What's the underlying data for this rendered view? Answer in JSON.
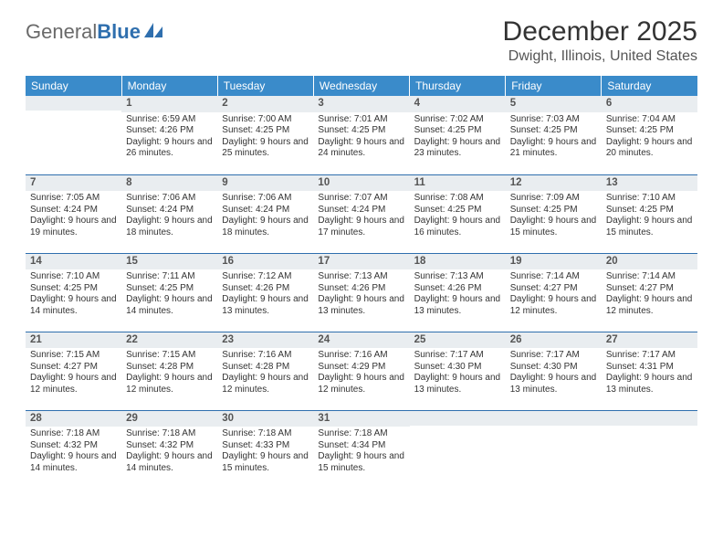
{
  "colors": {
    "header_bg": "#3a8bca",
    "header_text": "#ffffff",
    "daynum_bg": "#e9edf0",
    "daynum_text": "#555555",
    "row_border": "#2f6fae",
    "body_text": "#333333",
    "page_bg": "#ffffff",
    "logo_gray": "#6a6a6a",
    "logo_blue": "#2f6fae"
  },
  "logo": {
    "word1": "General",
    "word2": "Blue"
  },
  "title": "December 2025",
  "location": "Dwight, Illinois, United States",
  "weekdays": [
    "Sunday",
    "Monday",
    "Tuesday",
    "Wednesday",
    "Thursday",
    "Friday",
    "Saturday"
  ],
  "weeks": [
    [
      {
        "n": "",
        "sr": "",
        "ss": "",
        "dl": ""
      },
      {
        "n": "1",
        "sr": "Sunrise: 6:59 AM",
        "ss": "Sunset: 4:26 PM",
        "dl": "Daylight: 9 hours and 26 minutes."
      },
      {
        "n": "2",
        "sr": "Sunrise: 7:00 AM",
        "ss": "Sunset: 4:25 PM",
        "dl": "Daylight: 9 hours and 25 minutes."
      },
      {
        "n": "3",
        "sr": "Sunrise: 7:01 AM",
        "ss": "Sunset: 4:25 PM",
        "dl": "Daylight: 9 hours and 24 minutes."
      },
      {
        "n": "4",
        "sr": "Sunrise: 7:02 AM",
        "ss": "Sunset: 4:25 PM",
        "dl": "Daylight: 9 hours and 23 minutes."
      },
      {
        "n": "5",
        "sr": "Sunrise: 7:03 AM",
        "ss": "Sunset: 4:25 PM",
        "dl": "Daylight: 9 hours and 21 minutes."
      },
      {
        "n": "6",
        "sr": "Sunrise: 7:04 AM",
        "ss": "Sunset: 4:25 PM",
        "dl": "Daylight: 9 hours and 20 minutes."
      }
    ],
    [
      {
        "n": "7",
        "sr": "Sunrise: 7:05 AM",
        "ss": "Sunset: 4:24 PM",
        "dl": "Daylight: 9 hours and 19 minutes."
      },
      {
        "n": "8",
        "sr": "Sunrise: 7:06 AM",
        "ss": "Sunset: 4:24 PM",
        "dl": "Daylight: 9 hours and 18 minutes."
      },
      {
        "n": "9",
        "sr": "Sunrise: 7:06 AM",
        "ss": "Sunset: 4:24 PM",
        "dl": "Daylight: 9 hours and 18 minutes."
      },
      {
        "n": "10",
        "sr": "Sunrise: 7:07 AM",
        "ss": "Sunset: 4:24 PM",
        "dl": "Daylight: 9 hours and 17 minutes."
      },
      {
        "n": "11",
        "sr": "Sunrise: 7:08 AM",
        "ss": "Sunset: 4:25 PM",
        "dl": "Daylight: 9 hours and 16 minutes."
      },
      {
        "n": "12",
        "sr": "Sunrise: 7:09 AM",
        "ss": "Sunset: 4:25 PM",
        "dl": "Daylight: 9 hours and 15 minutes."
      },
      {
        "n": "13",
        "sr": "Sunrise: 7:10 AM",
        "ss": "Sunset: 4:25 PM",
        "dl": "Daylight: 9 hours and 15 minutes."
      }
    ],
    [
      {
        "n": "14",
        "sr": "Sunrise: 7:10 AM",
        "ss": "Sunset: 4:25 PM",
        "dl": "Daylight: 9 hours and 14 minutes."
      },
      {
        "n": "15",
        "sr": "Sunrise: 7:11 AM",
        "ss": "Sunset: 4:25 PM",
        "dl": "Daylight: 9 hours and 14 minutes."
      },
      {
        "n": "16",
        "sr": "Sunrise: 7:12 AM",
        "ss": "Sunset: 4:26 PM",
        "dl": "Daylight: 9 hours and 13 minutes."
      },
      {
        "n": "17",
        "sr": "Sunrise: 7:13 AM",
        "ss": "Sunset: 4:26 PM",
        "dl": "Daylight: 9 hours and 13 minutes."
      },
      {
        "n": "18",
        "sr": "Sunrise: 7:13 AM",
        "ss": "Sunset: 4:26 PM",
        "dl": "Daylight: 9 hours and 13 minutes."
      },
      {
        "n": "19",
        "sr": "Sunrise: 7:14 AM",
        "ss": "Sunset: 4:27 PM",
        "dl": "Daylight: 9 hours and 12 minutes."
      },
      {
        "n": "20",
        "sr": "Sunrise: 7:14 AM",
        "ss": "Sunset: 4:27 PM",
        "dl": "Daylight: 9 hours and 12 minutes."
      }
    ],
    [
      {
        "n": "21",
        "sr": "Sunrise: 7:15 AM",
        "ss": "Sunset: 4:27 PM",
        "dl": "Daylight: 9 hours and 12 minutes."
      },
      {
        "n": "22",
        "sr": "Sunrise: 7:15 AM",
        "ss": "Sunset: 4:28 PM",
        "dl": "Daylight: 9 hours and 12 minutes."
      },
      {
        "n": "23",
        "sr": "Sunrise: 7:16 AM",
        "ss": "Sunset: 4:28 PM",
        "dl": "Daylight: 9 hours and 12 minutes."
      },
      {
        "n": "24",
        "sr": "Sunrise: 7:16 AM",
        "ss": "Sunset: 4:29 PM",
        "dl": "Daylight: 9 hours and 12 minutes."
      },
      {
        "n": "25",
        "sr": "Sunrise: 7:17 AM",
        "ss": "Sunset: 4:30 PM",
        "dl": "Daylight: 9 hours and 13 minutes."
      },
      {
        "n": "26",
        "sr": "Sunrise: 7:17 AM",
        "ss": "Sunset: 4:30 PM",
        "dl": "Daylight: 9 hours and 13 minutes."
      },
      {
        "n": "27",
        "sr": "Sunrise: 7:17 AM",
        "ss": "Sunset: 4:31 PM",
        "dl": "Daylight: 9 hours and 13 minutes."
      }
    ],
    [
      {
        "n": "28",
        "sr": "Sunrise: 7:18 AM",
        "ss": "Sunset: 4:32 PM",
        "dl": "Daylight: 9 hours and 14 minutes."
      },
      {
        "n": "29",
        "sr": "Sunrise: 7:18 AM",
        "ss": "Sunset: 4:32 PM",
        "dl": "Daylight: 9 hours and 14 minutes."
      },
      {
        "n": "30",
        "sr": "Sunrise: 7:18 AM",
        "ss": "Sunset: 4:33 PM",
        "dl": "Daylight: 9 hours and 15 minutes."
      },
      {
        "n": "31",
        "sr": "Sunrise: 7:18 AM",
        "ss": "Sunset: 4:34 PM",
        "dl": "Daylight: 9 hours and 15 minutes."
      },
      {
        "n": "",
        "sr": "",
        "ss": "",
        "dl": ""
      },
      {
        "n": "",
        "sr": "",
        "ss": "",
        "dl": ""
      },
      {
        "n": "",
        "sr": "",
        "ss": "",
        "dl": ""
      }
    ]
  ]
}
